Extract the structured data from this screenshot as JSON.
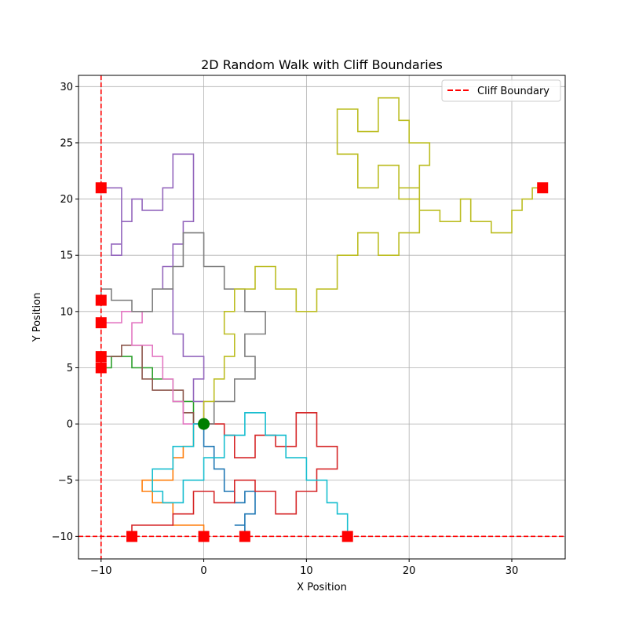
{
  "chart_data": {
    "type": "line",
    "title": "2D Random Walk with Cliff Boundaries",
    "xlabel": "X Position",
    "ylabel": "Y Position",
    "xlim": [
      -12.2,
      35.2
    ],
    "ylim": [
      -12.0,
      31.0
    ],
    "xticks": [
      -10,
      0,
      10,
      20,
      30
    ],
    "yticks": [
      -10,
      -5,
      0,
      5,
      10,
      15,
      20,
      25,
      30
    ],
    "xtick_labels": [
      "−10",
      "0",
      "10",
      "20",
      "30"
    ],
    "ytick_labels": [
      "−10",
      "−5",
      "0",
      "5",
      "10",
      "15",
      "20",
      "25",
      "30"
    ],
    "grid": true,
    "legend": {
      "placement": "top-right",
      "entries": [
        "Cliff Boundary"
      ]
    },
    "boundaries": {
      "x": -10,
      "y": -10,
      "color": "#ff0000",
      "style": "dashed"
    },
    "start": {
      "x": 0,
      "y": 0,
      "color": "#008000"
    },
    "end_marker_color": "#ff0000",
    "series": [
      {
        "color": "#1f77b4",
        "points": [
          [
            0,
            0
          ],
          [
            0,
            -2
          ],
          [
            1,
            -2
          ],
          [
            1,
            -4
          ],
          [
            2,
            -4
          ],
          [
            2,
            -6
          ],
          [
            3,
            -6
          ],
          [
            3,
            -7
          ],
          [
            4,
            -7
          ],
          [
            4,
            -6
          ],
          [
            5,
            -6
          ],
          [
            5,
            -8
          ],
          [
            4,
            -8
          ],
          [
            4,
            -9
          ],
          [
            3,
            -9
          ],
          [
            4,
            -9
          ],
          [
            4,
            -10
          ]
        ]
      },
      {
        "color": "#ff7f0e",
        "points": [
          [
            0,
            0
          ],
          [
            -1,
            0
          ],
          [
            -1,
            -2
          ],
          [
            -2,
            -2
          ],
          [
            -2,
            -3
          ],
          [
            -3,
            -3
          ],
          [
            -3,
            -5
          ],
          [
            -5,
            -5
          ],
          [
            -5,
            -6
          ],
          [
            -6,
            -6
          ],
          [
            -6,
            -5
          ],
          [
            -5,
            -5
          ],
          [
            -5,
            -7
          ],
          [
            -3,
            -7
          ],
          [
            -3,
            -9
          ],
          [
            -1,
            -9
          ],
          [
            0,
            -9
          ],
          [
            0,
            -10
          ]
        ]
      },
      {
        "color": "#2ca02c",
        "points": [
          [
            0,
            0
          ],
          [
            -1,
            0
          ],
          [
            -1,
            2
          ],
          [
            -3,
            2
          ],
          [
            -3,
            4
          ],
          [
            -5,
            4
          ],
          [
            -5,
            5
          ],
          [
            -7,
            5
          ],
          [
            -7,
            6
          ],
          [
            -9,
            6
          ],
          [
            -9,
            5
          ],
          [
            -10,
            5
          ]
        ]
      },
      {
        "color": "#d62728",
        "points": [
          [
            0,
            0
          ],
          [
            2,
            0
          ],
          [
            2,
            -1
          ],
          [
            3,
            -1
          ],
          [
            3,
            -3
          ],
          [
            5,
            -3
          ],
          [
            5,
            -1
          ],
          [
            7,
            -1
          ],
          [
            7,
            -2
          ],
          [
            9,
            -2
          ],
          [
            9,
            1
          ],
          [
            11,
            1
          ],
          [
            11,
            -2
          ],
          [
            13,
            -2
          ],
          [
            13,
            -4
          ],
          [
            11,
            -4
          ],
          [
            11,
            -6
          ],
          [
            9,
            -6
          ],
          [
            9,
            -8
          ],
          [
            7,
            -8
          ],
          [
            7,
            -6
          ],
          [
            5,
            -6
          ],
          [
            5,
            -5
          ],
          [
            3,
            -5
          ],
          [
            3,
            -7
          ],
          [
            1,
            -7
          ],
          [
            1,
            -6
          ],
          [
            -1,
            -6
          ],
          [
            -1,
            -8
          ],
          [
            -3,
            -8
          ],
          [
            -3,
            -9
          ],
          [
            -5,
            -9
          ],
          [
            -7,
            -9
          ],
          [
            -7,
            -10
          ]
        ]
      },
      {
        "color": "#9467bd",
        "points": [
          [
            0,
            0
          ],
          [
            0,
            2
          ],
          [
            -1,
            2
          ],
          [
            -1,
            4
          ],
          [
            0,
            4
          ],
          [
            0,
            6
          ],
          [
            -2,
            6
          ],
          [
            -2,
            8
          ],
          [
            -3,
            8
          ],
          [
            -3,
            12
          ],
          [
            -4,
            12
          ],
          [
            -4,
            14
          ],
          [
            -3,
            14
          ],
          [
            -3,
            16
          ],
          [
            -2,
            16
          ],
          [
            -2,
            18
          ],
          [
            -1,
            18
          ],
          [
            -1,
            20
          ],
          [
            -1,
            24
          ],
          [
            -3,
            24
          ],
          [
            -3,
            21
          ],
          [
            -4,
            21
          ],
          [
            -4,
            19
          ],
          [
            -6,
            19
          ],
          [
            -6,
            20
          ],
          [
            -7,
            20
          ],
          [
            -7,
            18
          ],
          [
            -8,
            18
          ],
          [
            -8,
            16
          ],
          [
            -9,
            16
          ],
          [
            -9,
            15
          ],
          [
            -8,
            15
          ],
          [
            -8,
            21
          ],
          [
            -9,
            21
          ],
          [
            -10,
            21
          ]
        ]
      },
      {
        "color": "#8c564b",
        "points": [
          [
            0,
            0
          ],
          [
            -1,
            0
          ],
          [
            -1,
            1
          ],
          [
            -2,
            1
          ],
          [
            -2,
            3
          ],
          [
            -5,
            3
          ],
          [
            -5,
            4
          ],
          [
            -6,
            4
          ],
          [
            -6,
            7
          ],
          [
            -8,
            7
          ],
          [
            -8,
            6
          ],
          [
            -10,
            6
          ]
        ]
      },
      {
        "color": "#e377c2",
        "points": [
          [
            0,
            0
          ],
          [
            -2,
            0
          ],
          [
            -2,
            2
          ],
          [
            -3,
            2
          ],
          [
            -3,
            4
          ],
          [
            -4,
            4
          ],
          [
            -4,
            6
          ],
          [
            -5,
            6
          ],
          [
            -5,
            7
          ],
          [
            -7,
            7
          ],
          [
            -7,
            9
          ],
          [
            -6,
            9
          ],
          [
            -6,
            10
          ],
          [
            -8,
            10
          ],
          [
            -8,
            9
          ],
          [
            -10,
            9
          ]
        ]
      },
      {
        "color": "#7f7f7f",
        "points": [
          [
            0,
            0
          ],
          [
            1,
            0
          ],
          [
            1,
            2
          ],
          [
            3,
            2
          ],
          [
            3,
            4
          ],
          [
            5,
            4
          ],
          [
            5,
            6
          ],
          [
            4,
            6
          ],
          [
            4,
            8
          ],
          [
            6,
            8
          ],
          [
            6,
            10
          ],
          [
            4,
            10
          ],
          [
            4,
            12
          ],
          [
            2,
            12
          ],
          [
            2,
            14
          ],
          [
            0,
            14
          ],
          [
            0,
            17
          ],
          [
            -2,
            17
          ],
          [
            -2,
            14
          ],
          [
            -3,
            14
          ],
          [
            -3,
            12
          ],
          [
            -5,
            12
          ],
          [
            -5,
            10
          ],
          [
            -7,
            10
          ],
          [
            -7,
            11
          ],
          [
            -9,
            11
          ],
          [
            -9,
            12
          ],
          [
            -10,
            12
          ],
          [
            -10,
            11
          ]
        ]
      },
      {
        "color": "#bcbd22",
        "points": [
          [
            0,
            0
          ],
          [
            0,
            2
          ],
          [
            1,
            2
          ],
          [
            1,
            4
          ],
          [
            2,
            4
          ],
          [
            2,
            6
          ],
          [
            3,
            6
          ],
          [
            3,
            8
          ],
          [
            2,
            8
          ],
          [
            2,
            10
          ],
          [
            3,
            10
          ],
          [
            3,
            12
          ],
          [
            5,
            12
          ],
          [
            5,
            14
          ],
          [
            7,
            14
          ],
          [
            7,
            12
          ],
          [
            9,
            12
          ],
          [
            9,
            10
          ],
          [
            11,
            10
          ],
          [
            11,
            12
          ],
          [
            13,
            12
          ],
          [
            13,
            15
          ],
          [
            15,
            15
          ],
          [
            15,
            17
          ],
          [
            17,
            17
          ],
          [
            17,
            15
          ],
          [
            19,
            15
          ],
          [
            19,
            17
          ],
          [
            21,
            17
          ],
          [
            21,
            20
          ],
          [
            19,
            20
          ],
          [
            19,
            21
          ],
          [
            21,
            21
          ],
          [
            21,
            23
          ],
          [
            22,
            23
          ],
          [
            22,
            25
          ],
          [
            20,
            25
          ],
          [
            20,
            27
          ],
          [
            19,
            27
          ],
          [
            19,
            29
          ],
          [
            17,
            29
          ],
          [
            17,
            26
          ],
          [
            15,
            26
          ],
          [
            15,
            28
          ],
          [
            13,
            28
          ],
          [
            13,
            24
          ],
          [
            15,
            24
          ],
          [
            15,
            21
          ],
          [
            17,
            21
          ],
          [
            17,
            23
          ],
          [
            19,
            23
          ],
          [
            19,
            21
          ],
          [
            21,
            21
          ],
          [
            21,
            19
          ],
          [
            23,
            19
          ],
          [
            23,
            18
          ],
          [
            25,
            18
          ],
          [
            25,
            20
          ],
          [
            26,
            20
          ],
          [
            26,
            18
          ],
          [
            28,
            18
          ],
          [
            28,
            17
          ],
          [
            30,
            17
          ],
          [
            30,
            19
          ],
          [
            31,
            19
          ],
          [
            31,
            20
          ],
          [
            32,
            20
          ],
          [
            32,
            21
          ],
          [
            33,
            21
          ]
        ]
      },
      {
        "color": "#17becf",
        "points": [
          [
            0,
            0
          ],
          [
            -1,
            0
          ],
          [
            -1,
            -2
          ],
          [
            -3,
            -2
          ],
          [
            -3,
            -4
          ],
          [
            -5,
            -4
          ],
          [
            -5,
            -6
          ],
          [
            -4,
            -6
          ],
          [
            -4,
            -7
          ],
          [
            -2,
            -7
          ],
          [
            -2,
            -5
          ],
          [
            0,
            -5
          ],
          [
            0,
            -3
          ],
          [
            2,
            -3
          ],
          [
            2,
            -1
          ],
          [
            4,
            -1
          ],
          [
            4,
            1
          ],
          [
            6,
            1
          ],
          [
            6,
            -1
          ],
          [
            8,
            -1
          ],
          [
            8,
            -3
          ],
          [
            10,
            -3
          ],
          [
            10,
            -5
          ],
          [
            12,
            -5
          ],
          [
            12,
            -7
          ],
          [
            13,
            -7
          ],
          [
            13,
            -8
          ],
          [
            14,
            -8
          ],
          [
            14,
            -10
          ]
        ]
      }
    ]
  }
}
